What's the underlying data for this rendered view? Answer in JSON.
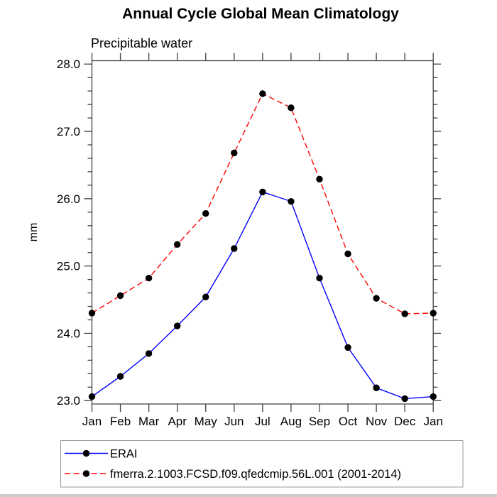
{
  "chart_data": {
    "type": "line",
    "title": "Annual Cycle Global Mean Climatology",
    "subtitle": "Precipitable water",
    "xlabel": "",
    "ylabel": "mm",
    "categories": [
      "Jan",
      "Feb",
      "Mar",
      "Apr",
      "May",
      "Jun",
      "Jul",
      "Aug",
      "Sep",
      "Oct",
      "Nov",
      "Dec",
      "Jan"
    ],
    "ylim": [
      22.95,
      28.05
    ],
    "yticks_major": [
      23.0,
      24.0,
      25.0,
      26.0,
      27.0,
      28.0
    ],
    "ytick_labels": [
      "23.0",
      "24.0",
      "25.0",
      "26.0",
      "27.0",
      "28.0"
    ],
    "yminor_step": 0.2,
    "grid": false,
    "legend_position": "bottom-left",
    "axis_color": "#404040",
    "marker": "filled-circle",
    "marker_color": "#000000",
    "series": [
      {
        "name": "ERAI",
        "color": "#0000ff",
        "line_style": "solid",
        "values": [
          23.06,
          23.36,
          23.7,
          24.11,
          24.54,
          25.26,
          26.1,
          25.96,
          24.82,
          23.79,
          23.19,
          23.03,
          23.06
        ]
      },
      {
        "name": "fmerra.2.1003.FCSD.f09.qfedcmip.56L.001 (2001-2014)",
        "color": "#ff0000",
        "line_style": "dashed",
        "values": [
          24.3,
          24.56,
          24.82,
          25.32,
          25.78,
          26.68,
          27.56,
          27.35,
          26.29,
          25.18,
          24.52,
          24.29,
          24.3
        ]
      }
    ]
  }
}
